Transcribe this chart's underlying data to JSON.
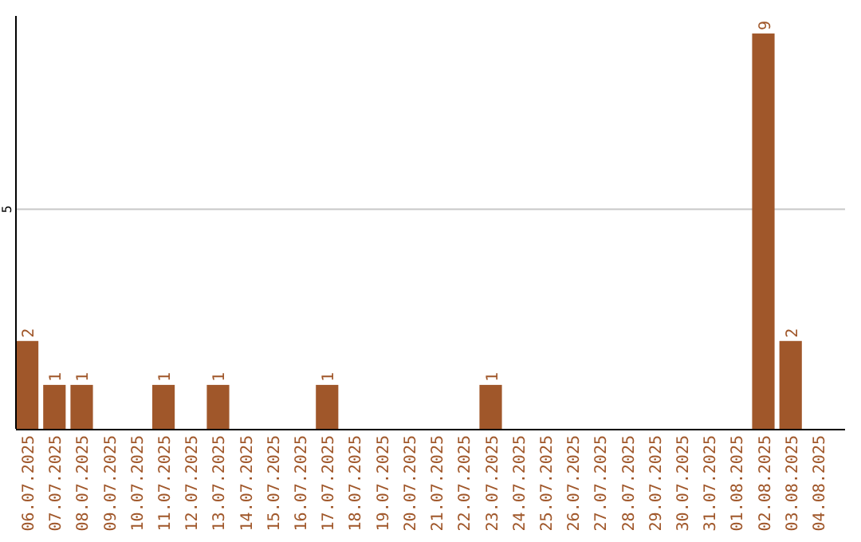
{
  "chart_data": {
    "type": "bar",
    "categories": [
      "06.07.2025",
      "07.07.2025",
      "08.07.2025",
      "09.07.2025",
      "10.07.2025",
      "11.07.2025",
      "12.07.2025",
      "13.07.2025",
      "14.07.2025",
      "15.07.2025",
      "16.07.2025",
      "17.07.2025",
      "18.07.2025",
      "19.07.2025",
      "20.07.2025",
      "21.07.2025",
      "22.07.2025",
      "23.07.2025",
      "24.07.2025",
      "25.07.2025",
      "26.07.2025",
      "27.07.2025",
      "28.07.2025",
      "29.07.2025",
      "30.07.2025",
      "31.07.2025",
      "01.08.2025",
      "02.08.2025",
      "03.08.2025",
      "04.08.2025"
    ],
    "values": [
      2,
      1,
      1,
      0,
      0,
      1,
      0,
      1,
      0,
      0,
      0,
      1,
      0,
      0,
      0,
      0,
      0,
      1,
      0,
      0,
      0,
      0,
      0,
      0,
      0,
      0,
      0,
      9,
      2,
      0
    ],
    "value_labels": [
      "2",
      "1",
      "1",
      null,
      null,
      "1",
      null,
      "1",
      null,
      null,
      null,
      "1",
      null,
      null,
      null,
      null,
      null,
      "1",
      null,
      null,
      null,
      null,
      null,
      null,
      null,
      null,
      null,
      "9",
      "2",
      null
    ],
    "color": "#a0572a",
    "ylim": [
      0,
      9.4
    ],
    "yticks": [
      5
    ],
    "grid": "y"
  }
}
